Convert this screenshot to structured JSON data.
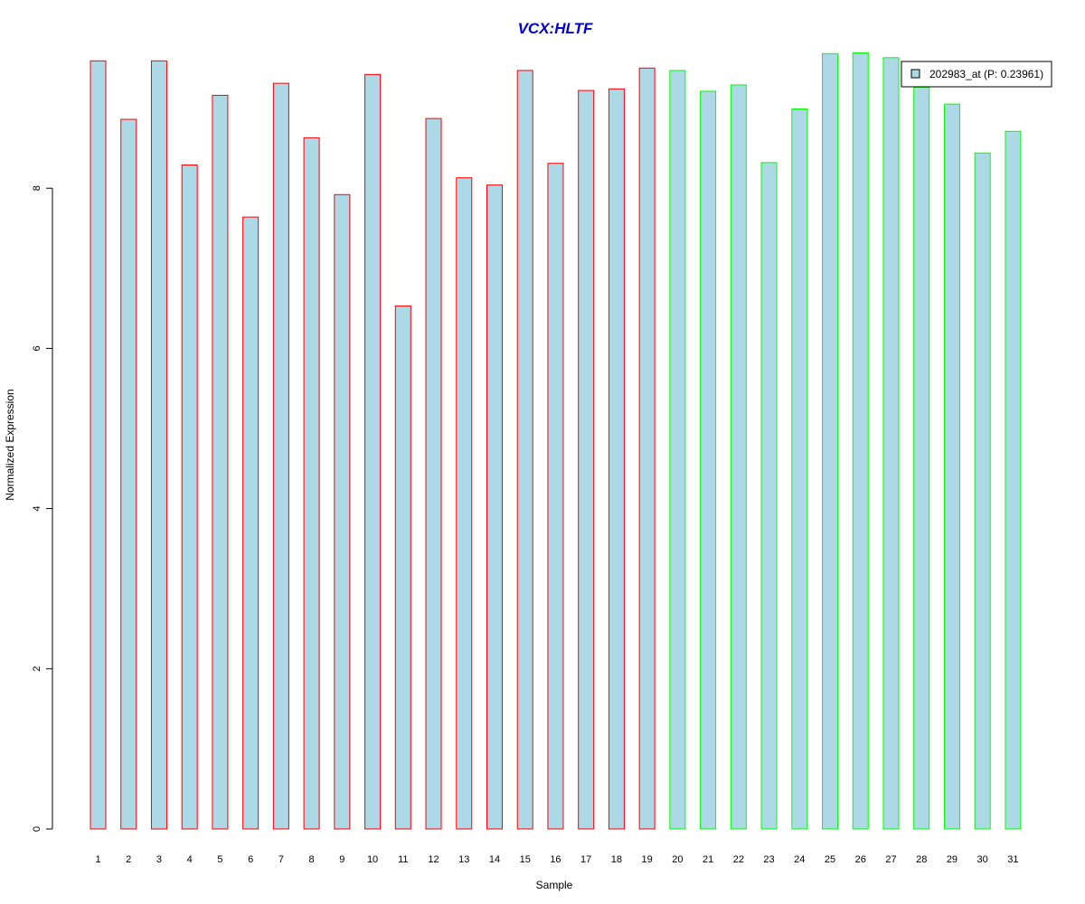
{
  "chart_data": {
    "type": "bar",
    "title": "VCX:HLTF",
    "xlabel": "Sample",
    "ylabel": "Normalized Expression",
    "categories": [
      "1",
      "2",
      "3",
      "4",
      "5",
      "6",
      "7",
      "8",
      "9",
      "10",
      "11",
      "12",
      "13",
      "14",
      "15",
      "16",
      "17",
      "18",
      "19",
      "20",
      "21",
      "22",
      "23",
      "24",
      "25",
      "26",
      "27",
      "28",
      "29",
      "30",
      "31"
    ],
    "series": [
      {
        "name": "202983_at (P: 0.23961)",
        "values": [
          9.59,
          8.86,
          9.59,
          8.29,
          9.16,
          7.64,
          9.31,
          8.63,
          7.92,
          9.42,
          6.53,
          8.87,
          8.13,
          8.04,
          9.47,
          8.31,
          9.22,
          9.24,
          9.5,
          9.47,
          9.21,
          9.29,
          8.32,
          8.99,
          9.68,
          9.69,
          9.63,
          9.26,
          9.05,
          8.44,
          8.71
        ]
      }
    ],
    "group_colors": [
      "red",
      "red",
      "red",
      "red",
      "red",
      "red",
      "red",
      "red",
      "red",
      "red",
      "red",
      "red",
      "red",
      "red",
      "red",
      "red",
      "red",
      "red",
      "red",
      "green",
      "green",
      "green",
      "green",
      "green",
      "green",
      "green",
      "green",
      "green",
      "green",
      "green",
      "green"
    ],
    "ylim": [
      0,
      9.8
    ],
    "yticks": [
      "0",
      "2",
      "4",
      "6",
      "8"
    ],
    "grid": false,
    "legend_position": "top-right",
    "colors": {
      "bar_fill": "#add8e6",
      "red": "#ff0000",
      "green": "#00ff00",
      "title": "#0000cd",
      "axis": "#000000"
    }
  }
}
